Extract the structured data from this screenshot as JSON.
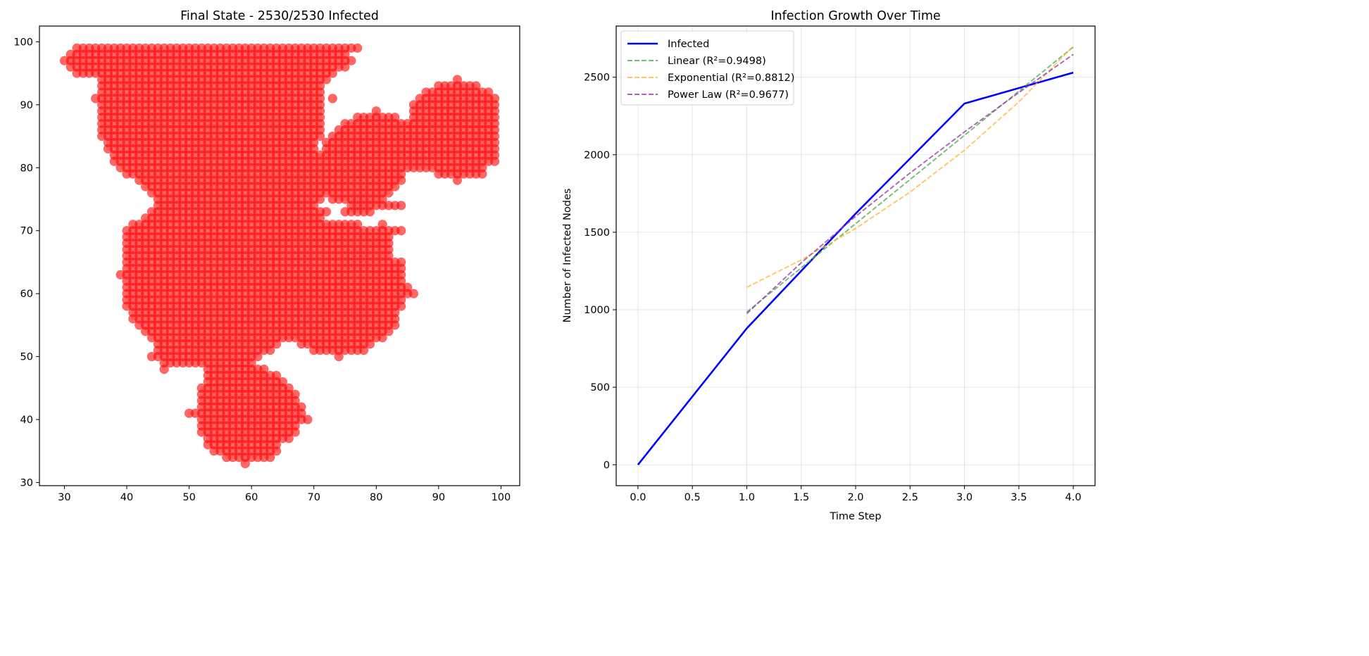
{
  "chart_data": [
    {
      "type": "scatter",
      "title": "Final State - 2530/2530 Infected",
      "xlabel": "",
      "ylabel": "",
      "xlim": [
        26,
        103
      ],
      "ylim": [
        29.5,
        102.5
      ],
      "xticks": [
        30,
        40,
        50,
        60,
        70,
        80,
        90,
        100
      ],
      "yticks": [
        30,
        40,
        50,
        60,
        70,
        80,
        90,
        100
      ],
      "grid": false,
      "marker_color": "#ff0000",
      "marker_alpha": 0.6,
      "points_note_rows": "integer grid points, listed per y row as inclusive x spans",
      "rows": [
        [
          99,
          [
            [
              32,
              77
            ]
          ]
        ],
        [
          98,
          [
            [
              31,
              75
            ]
          ]
        ],
        [
          97,
          [
            [
              30,
              76
            ]
          ]
        ],
        [
          96,
          [
            [
              31,
              75
            ]
          ]
        ],
        [
          95,
          [
            [
              32,
              73
            ]
          ]
        ],
        [
          94,
          [
            [
              36,
              72
            ],
            [
              93,
              93
            ]
          ]
        ],
        [
          93,
          [
            [
              36,
              71
            ],
            [
              90,
              96
            ]
          ]
        ],
        [
          92,
          [
            [
              36,
              71
            ],
            [
              88,
              98
            ]
          ]
        ],
        [
          91,
          [
            [
              35,
              71
            ],
            [
              73,
              73
            ],
            [
              87,
              99
            ]
          ]
        ],
        [
          90,
          [
            [
              36,
              71
            ],
            [
              86,
              99
            ]
          ]
        ],
        [
          89,
          [
            [
              36,
              71
            ],
            [
              80,
              80
            ],
            [
              86,
              99
            ]
          ]
        ],
        [
          88,
          [
            [
              36,
              71
            ],
            [
              77,
              83
            ],
            [
              86,
              99
            ]
          ]
        ],
        [
          87,
          [
            [
              36,
              71
            ],
            [
              75,
              99
            ]
          ]
        ],
        [
          86,
          [
            [
              36,
              71
            ],
            [
              74,
              99
            ]
          ]
        ],
        [
          85,
          [
            [
              36,
              71
            ],
            [
              73,
              99
            ]
          ]
        ],
        [
          84,
          [
            [
              37,
              70
            ],
            [
              72,
              99
            ]
          ]
        ],
        [
          83,
          [
            [
              37,
              70
            ],
            [
              72,
              99
            ]
          ]
        ],
        [
          82,
          [
            [
              38,
              99
            ]
          ]
        ],
        [
          81,
          [
            [
              38,
              99
            ]
          ]
        ],
        [
          80,
          [
            [
              39,
              97
            ]
          ]
        ],
        [
          79,
          [
            [
              40,
              84
            ],
            [
              90,
              97
            ]
          ]
        ],
        [
          78,
          [
            [
              42,
              84
            ],
            [
              93,
              93
            ]
          ]
        ],
        [
          77,
          [
            [
              43,
              83
            ]
          ]
        ],
        [
          76,
          [
            [
              44,
              82
            ]
          ]
        ],
        [
          75,
          [
            [
              45,
              71
            ],
            [
              73,
              81
            ]
          ]
        ],
        [
          74,
          [
            [
              45,
              70
            ],
            [
              76,
              84
            ]
          ]
        ],
        [
          73,
          [
            [
              44,
              72
            ],
            [
              75,
              79
            ]
          ]
        ],
        [
          72,
          [
            [
              43,
              71
            ]
          ]
        ],
        [
          71,
          [
            [
              41,
              77
            ],
            [
              81,
              81
            ]
          ]
        ],
        [
          70,
          [
            [
              40,
              84
            ]
          ]
        ],
        [
          69,
          [
            [
              40,
              82
            ]
          ]
        ],
        [
          68,
          [
            [
              40,
              82
            ]
          ]
        ],
        [
          67,
          [
            [
              40,
              82
            ]
          ]
        ],
        [
          66,
          [
            [
              40,
              82
            ]
          ]
        ],
        [
          65,
          [
            [
              40,
              84
            ]
          ]
        ],
        [
          64,
          [
            [
              40,
              84
            ]
          ]
        ],
        [
          63,
          [
            [
              39,
              84
            ]
          ]
        ],
        [
          62,
          [
            [
              40,
              84
            ]
          ]
        ],
        [
          61,
          [
            [
              40,
              85
            ]
          ]
        ],
        [
          60,
          [
            [
              40,
              86
            ]
          ]
        ],
        [
          59,
          [
            [
              40,
              84
            ]
          ]
        ],
        [
          58,
          [
            [
              40,
              84
            ]
          ]
        ],
        [
          57,
          [
            [
              41,
              83
            ]
          ]
        ],
        [
          56,
          [
            [
              41,
              83
            ]
          ]
        ],
        [
          55,
          [
            [
              42,
              83
            ]
          ]
        ],
        [
          54,
          [
            [
              43,
              82
            ]
          ]
        ],
        [
          53,
          [
            [
              44,
              81
            ]
          ]
        ],
        [
          52,
          [
            [
              45,
              64
            ],
            [
              68,
              79
            ]
          ]
        ],
        [
          51,
          [
            [
              45,
              63
            ],
            [
              70,
              78
            ]
          ]
        ],
        [
          50,
          [
            [
              44,
              61
            ],
            [
              74,
              74
            ]
          ]
        ],
        [
          49,
          [
            [
              46,
              60
            ]
          ]
        ],
        [
          48,
          [
            [
              46,
              46
            ],
            [
              53,
              62
            ]
          ]
        ],
        [
          47,
          [
            [
              53,
              64
            ]
          ]
        ],
        [
          46,
          [
            [
              53,
              65
            ]
          ]
        ],
        [
          45,
          [
            [
              52,
              66
            ]
          ]
        ],
        [
          44,
          [
            [
              52,
              67
            ]
          ]
        ],
        [
          43,
          [
            [
              52,
              67
            ]
          ]
        ],
        [
          42,
          [
            [
              52,
              68
            ]
          ]
        ],
        [
          41,
          [
            [
              50,
              68
            ]
          ]
        ],
        [
          40,
          [
            [
              52,
              69
            ]
          ]
        ],
        [
          39,
          [
            [
              52,
              67
            ]
          ]
        ],
        [
          38,
          [
            [
              52,
              67
            ]
          ]
        ],
        [
          37,
          [
            [
              53,
              66
            ]
          ]
        ],
        [
          36,
          [
            [
              53,
              64
            ]
          ]
        ],
        [
          35,
          [
            [
              54,
              64
            ]
          ]
        ],
        [
          34,
          [
            [
              56,
              63
            ]
          ]
        ],
        [
          33,
          [
            [
              59,
              59
            ]
          ]
        ]
      ]
    },
    {
      "type": "line",
      "title": "Infection Growth Over Time",
      "xlabel": "Time Step",
      "ylabel": "Number of Infected Nodes",
      "xlim": [
        -0.2,
        4.2
      ],
      "ylim": [
        -135,
        2830
      ],
      "xticks": [
        "0.0",
        "0.5",
        "1.0",
        "1.5",
        "2.0",
        "2.5",
        "3.0",
        "3.5",
        "4.0"
      ],
      "yticks": [
        "0",
        "500",
        "1000",
        "1500",
        "2000",
        "2500"
      ],
      "grid": true,
      "legend_position": "top-left",
      "series": [
        {
          "name": "Infected",
          "color": "#0000ff",
          "style": "solid",
          "x": [
            0,
            1,
            2,
            3,
            4
          ],
          "y": [
            0,
            880,
            1620,
            2330,
            2530
          ]
        },
        {
          "name": "Linear (R²=0.9498)",
          "color": "#4caf50",
          "style": "dashed",
          "x": [
            1,
            1.5,
            2,
            2.5,
            3,
            3.5,
            4
          ],
          "y": [
            985,
            1270,
            1555,
            1840,
            2125,
            2410,
            2695
          ]
        },
        {
          "name": "Exponential (R²=0.8812)",
          "color": "#ffb938",
          "style": "dashed",
          "x": [
            1,
            1.5,
            2,
            2.5,
            3,
            3.5,
            4
          ],
          "y": [
            1145,
            1321,
            1524,
            1759,
            2029,
            2341,
            2701
          ]
        },
        {
          "name": "Power Law (R²=0.9677)",
          "color": "#9c3aa8",
          "style": "dashed",
          "x": [
            1,
            1.5,
            2,
            2.5,
            3,
            3.5,
            4
          ],
          "y": [
            975,
            1303,
            1602,
            1882,
            2147,
            2401,
            2647
          ]
        }
      ]
    }
  ]
}
